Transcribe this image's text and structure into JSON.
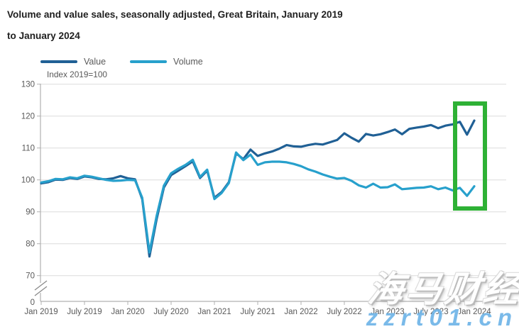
{
  "header": {
    "title_line1": "Volume and value sales, seasonally adjusted, Great Britain, January 2019",
    "title_line2": "to January 2024"
  },
  "legend": [
    {
      "label": "Value",
      "color": "#206095"
    },
    {
      "label": "Volume",
      "color": "#27a0cc"
    }
  ],
  "axis_note": "Index 2019=100",
  "chart_data": {
    "type": "line",
    "title": "Volume and value sales, seasonally adjusted, Great Britain, January 2019 to January 2024",
    "ylabel": "Index 2019=100",
    "grid": true,
    "legend_position": "top-left",
    "y_axis": {
      "ticks": [
        130,
        120,
        110,
        100,
        90,
        80,
        70
      ],
      "axis_break_above_zero": true,
      "zero_label": "0",
      "ylim_plotted": [
        70,
        130
      ]
    },
    "x_axis": {
      "tick_labels": [
        "Jan 2019",
        "July 2019",
        "Jan 2020",
        "July 2020",
        "Jan 2021",
        "July 2021",
        "Jan 2022",
        "July 2022",
        "Jan 2023",
        "July 2023",
        "Jan 2024"
      ],
      "frequency": "monthly",
      "range": "Jan 2019 to Jan 2024"
    },
    "series": [
      {
        "name": "Value",
        "color": "#206095",
        "values": [
          98.9,
          99.3,
          100.1,
          100.0,
          100.6,
          100.3,
          101.1,
          100.8,
          100.3,
          100.2,
          100.5,
          101.2,
          100.5,
          100.2,
          94.0,
          76.0,
          87.8,
          97.6,
          101.5,
          102.9,
          104.3,
          105.8,
          100.6,
          102.9,
          94.4,
          96.2,
          99.3,
          108.3,
          106.5,
          109.5,
          107.5,
          108.3,
          108.9,
          109.8,
          110.9,
          110.5,
          110.4,
          110.9,
          111.3,
          111.1,
          111.8,
          112.5,
          114.6,
          113.2,
          112.0,
          114.4,
          113.9,
          114.3,
          115.0,
          115.8,
          114.3,
          116.0,
          116.4,
          116.7,
          117.2,
          116.2,
          117.0,
          117.4,
          118.2,
          114.2,
          118.6
        ]
      },
      {
        "name": "Volume",
        "color": "#27a0cc",
        "values": [
          99.2,
          99.6,
          100.3,
          100.2,
          100.8,
          100.5,
          101.3,
          101.0,
          100.5,
          100.0,
          99.7,
          99.8,
          100.0,
          99.9,
          94.4,
          77.3,
          88.8,
          98.2,
          102.1,
          103.5,
          104.7,
          106.3,
          100.9,
          103.2,
          94.0,
          95.9,
          99.0,
          108.6,
          106.2,
          107.9,
          104.7,
          105.5,
          105.7,
          105.7,
          105.5,
          105.0,
          104.3,
          103.3,
          102.6,
          101.7,
          101.0,
          100.4,
          100.6,
          99.7,
          98.3,
          97.6,
          98.8,
          97.6,
          97.7,
          98.6,
          97.1,
          97.3,
          97.5,
          97.6,
          98.0,
          97.1,
          97.6,
          96.7,
          97.5,
          95.0,
          98.0
        ]
      }
    ],
    "annotation": {
      "type": "highlight-box",
      "color": "#2eb135",
      "covers": "Dec 2023 dip and Jan 2024 rebound in both series"
    }
  },
  "watermark": {
    "cjk_text": "海马财经",
    "url_text": "zzrt01.cn",
    "url_color": "#6fb5e8"
  }
}
